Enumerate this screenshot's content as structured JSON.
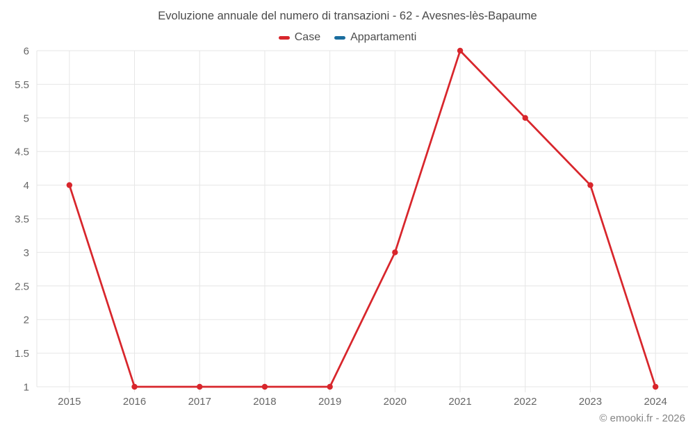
{
  "chart_data": {
    "type": "line",
    "title": "Evoluzione annuale del numero di transazioni - 62 - Avesnes-lès-Bapaume",
    "categories": [
      "2015",
      "2016",
      "2017",
      "2018",
      "2019",
      "2020",
      "2021",
      "2022",
      "2023",
      "2024"
    ],
    "series": [
      {
        "name": "Case",
        "color": "#d8262c",
        "values": [
          4,
          1,
          1,
          1,
          1,
          3,
          6,
          5,
          4,
          1
        ]
      },
      {
        "name": "Appartamenti",
        "color": "#1a6d9e",
        "values": []
      }
    ],
    "ylim": [
      1,
      6
    ],
    "ytick_step": 0.5,
    "yticks": [
      1,
      1.5,
      2,
      2.5,
      3,
      3.5,
      4,
      4.5,
      5,
      5.5,
      6
    ],
    "grid": true,
    "legend_position": "top",
    "grid_color": "#e6e6e6",
    "axis_label_color": "#666666"
  },
  "footer": {
    "copyright": "© emooki.fr - 2026"
  }
}
